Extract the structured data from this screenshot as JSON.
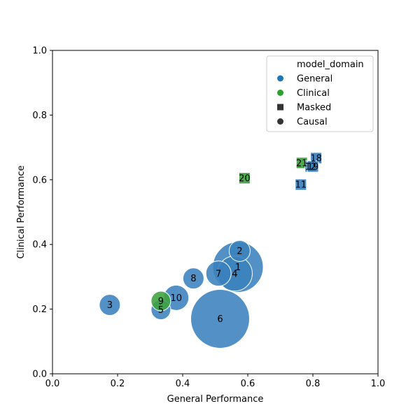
{
  "chart_data": {
    "type": "scatter",
    "xlabel": "General Performance",
    "ylabel": "Clinical Performance",
    "xlim": [
      0.0,
      1.0
    ],
    "ylim": [
      0.0,
      1.0
    ],
    "xticks": [
      "0.0",
      "0.2",
      "0.4",
      "0.6",
      "0.8",
      "1.0"
    ],
    "yticks": [
      "0.0",
      "0.2",
      "0.4",
      "0.6",
      "0.8",
      "1.0"
    ],
    "grid": false,
    "legend": {
      "placement": "top-right",
      "title": "model_domain",
      "entries": [
        {
          "label": "General",
          "marker": "circle",
          "color": "#1f77b4"
        },
        {
          "label": "Clinical",
          "marker": "circle",
          "color": "#2ca02c"
        },
        {
          "label": "Masked",
          "marker": "square",
          "color": "#333333"
        },
        {
          "label": "Causal",
          "marker": "circle",
          "color": "#333333"
        }
      ]
    },
    "colors": {
      "General": "#3a81bd",
      "Clinical": "#3da23d"
    },
    "points": [
      {
        "label": "6",
        "x": 0.515,
        "y": 0.17,
        "domain": "General",
        "type": "Causal",
        "size": 42
      },
      {
        "label": "1",
        "x": 0.57,
        "y": 0.33,
        "domain": "General",
        "type": "Causal",
        "size": 36
      },
      {
        "label": "4",
        "x": 0.56,
        "y": 0.31,
        "domain": "General",
        "type": "Causal",
        "size": 25
      },
      {
        "label": "7",
        "x": 0.51,
        "y": 0.31,
        "domain": "General",
        "type": "Causal",
        "size": 18
      },
      {
        "label": "2",
        "x": 0.575,
        "y": 0.38,
        "domain": "General",
        "type": "Causal",
        "size": 15
      },
      {
        "label": "10",
        "x": 0.38,
        "y": 0.235,
        "domain": "General",
        "type": "Causal",
        "size": 18
      },
      {
        "label": "8",
        "x": 0.433,
        "y": 0.295,
        "domain": "General",
        "type": "Causal",
        "size": 15
      },
      {
        "label": "3",
        "x": 0.176,
        "y": 0.213,
        "domain": "General",
        "type": "Causal",
        "size": 15
      },
      {
        "label": "5",
        "x": 0.333,
        "y": 0.198,
        "domain": "General",
        "type": "Causal",
        "size": 14
      },
      {
        "label": "9",
        "x": 0.333,
        "y": 0.225,
        "domain": "Clinical",
        "type": "Causal",
        "size": 14
      },
      {
        "label": "20",
        "x": 0.59,
        "y": 0.605,
        "domain": "Clinical",
        "type": "Masked",
        "size": 8
      },
      {
        "label": "21",
        "x": 0.766,
        "y": 0.652,
        "domain": "Clinical",
        "type": "Masked",
        "size": 8
      },
      {
        "label": "11",
        "x": 0.763,
        "y": 0.585,
        "domain": "General",
        "type": "Masked",
        "size": 8
      },
      {
        "label": "18",
        "x": 0.81,
        "y": 0.667,
        "domain": "General",
        "type": "Masked",
        "size": 8
      },
      {
        "label": "12",
        "x": 0.793,
        "y": 0.641,
        "domain": "General",
        "type": "Masked",
        "size": 8
      },
      {
        "label": "19",
        "x": 0.8,
        "y": 0.641,
        "domain": "General",
        "type": "Masked",
        "size": 8
      }
    ]
  }
}
